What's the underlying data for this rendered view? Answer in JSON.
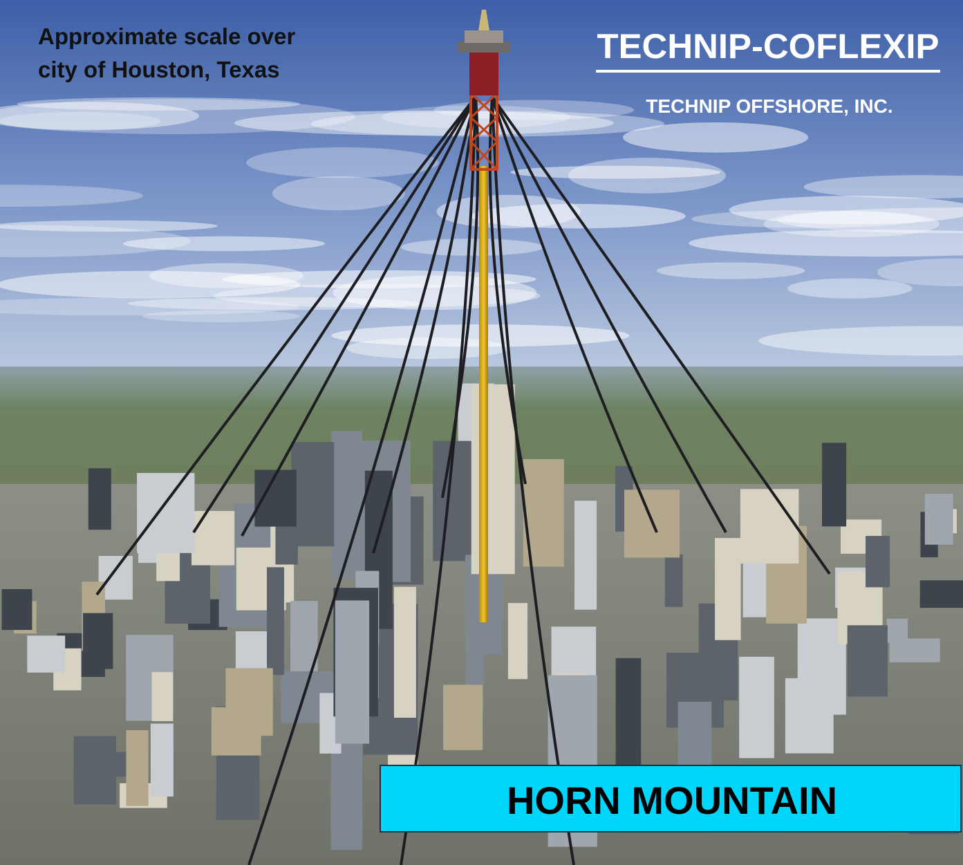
{
  "caption": {
    "line1": "Approximate scale over",
    "line2": "city of Houston, Texas"
  },
  "logo": {
    "company": "TECHNIP-COFLEXIP",
    "subsidiary": "TECHNIP OFFSHORE, INC."
  },
  "label": "HORN MOUNTAIN"
}
